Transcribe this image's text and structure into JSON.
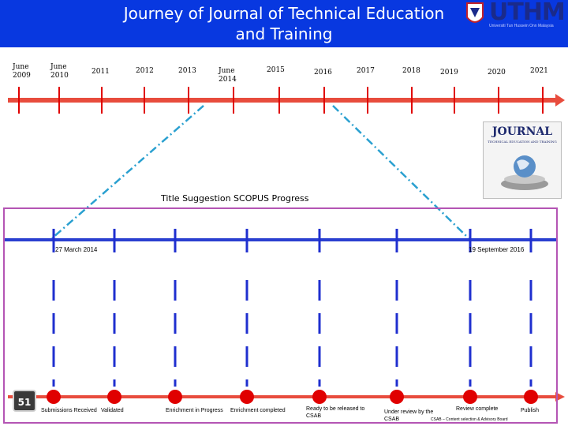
{
  "header": {
    "title_line1": "Journey of Journal of Technical Education",
    "title_line2": "and Training",
    "logo_text": "UTHM",
    "logo_subtitle": "Universiti Tun Hussein Onn Malaysia",
    "banner_color": "#0838e0"
  },
  "top_timeline": {
    "years": [
      {
        "line1": "June",
        "line2": "2009"
      },
      {
        "line1": "June",
        "line2": "2010"
      },
      {
        "line1": "2011",
        "line2": ""
      },
      {
        "line1": "2012",
        "line2": ""
      },
      {
        "line1": "2013",
        "line2": ""
      },
      {
        "line1": "June",
        "line2": "2014"
      },
      {
        "line1": "2015",
        "line2": ""
      },
      {
        "line1": "2016",
        "line2": ""
      },
      {
        "line1": "2017",
        "line2": ""
      },
      {
        "line1": "2018",
        "line2": ""
      },
      {
        "line1": "2019",
        "line2": ""
      },
      {
        "line1": "2020",
        "line2": ""
      },
      {
        "line1": "2021",
        "line2": ""
      }
    ],
    "axis_color": "#e84c3d",
    "tick_color": "#e00000"
  },
  "journal_cover": {
    "title": "JOURNAL",
    "subtitle": "TECHNICAL EDUCATION AND TRAINING"
  },
  "progress": {
    "title": "Title Suggestion SCOPUS Progress",
    "start_date": "27 March 2014",
    "end_date": "19 September 2016",
    "line_color": "#2a3fd0",
    "stages": [
      "Submissions Received",
      "Validated",
      "Enrichment in Progress",
      "Enrichment completed",
      "Ready to be released to CSAB",
      "Under review by the CSAB",
      "Review complete",
      "Publish"
    ],
    "footnote": "CSAB – Content selection & Advisory Board",
    "stage_color": "#e00000"
  },
  "page_number": "51",
  "frame_color": "#b455b4",
  "connector_color": "#2aa0d0"
}
